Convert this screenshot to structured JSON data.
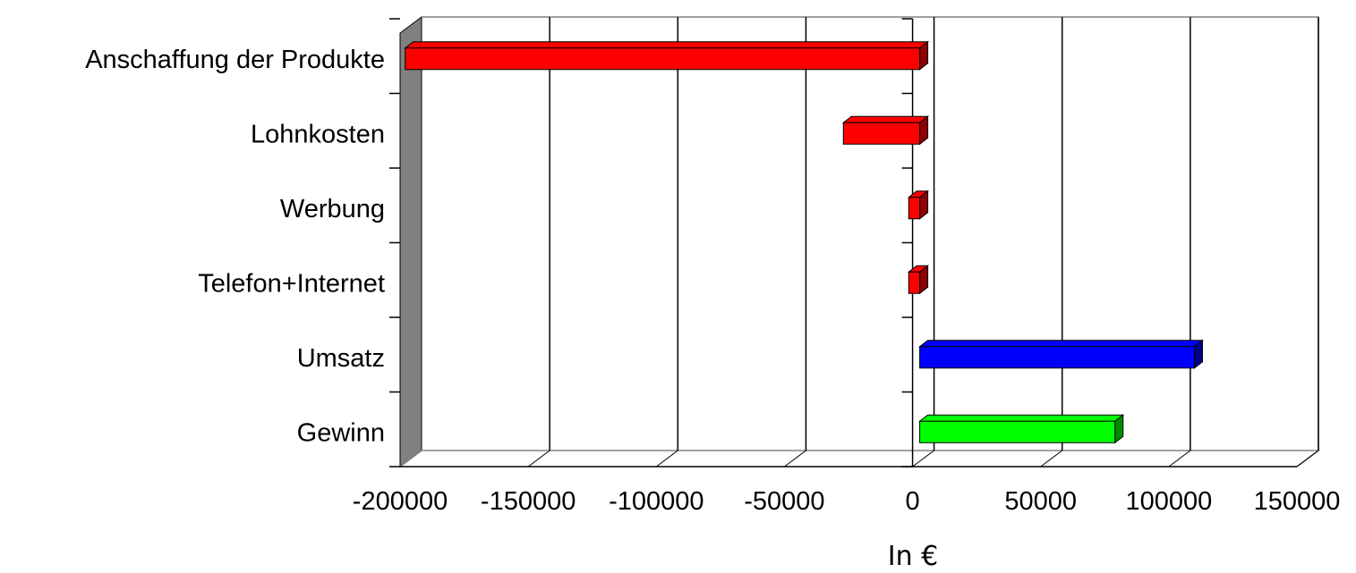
{
  "chart_data": {
    "type": "bar",
    "orientation": "horizontal",
    "three_d": true,
    "categories": [
      "Anschaffung der Produkte",
      "Lohnkosten",
      "Werbung",
      "Telefon+Internet",
      "Umsatz",
      "Gewinn"
    ],
    "values": [
      -198000,
      -27000,
      -1500,
      -1500,
      110000,
      79000
    ],
    "bar_colors": [
      "#ff0000",
      "#ff0000",
      "#ff0000",
      "#ff0000",
      "#0000ff",
      "#00ff00"
    ],
    "xlabel": "In €",
    "xlim": [
      -200000,
      150000
    ],
    "xticks": [
      -200000,
      -150000,
      -100000,
      -50000,
      0,
      50000,
      100000,
      150000
    ],
    "xtick_labels": [
      "-200000",
      "-150000",
      "-100000",
      "-50000",
      "0",
      "50000",
      "100000",
      "150000"
    ],
    "grid": true
  }
}
